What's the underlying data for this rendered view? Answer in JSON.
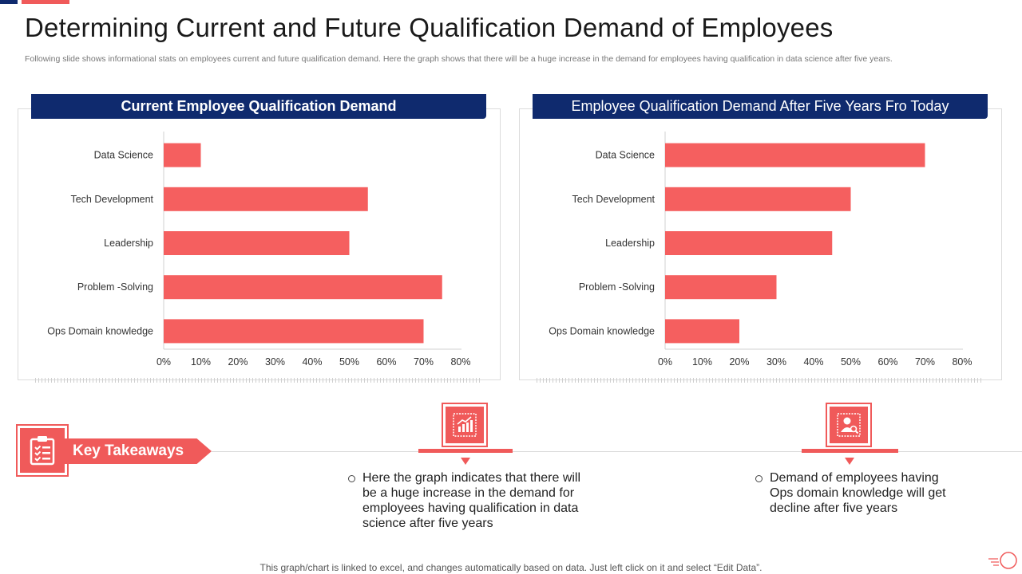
{
  "page": {
    "title": "Determining Current and Future Qualification Demand of Employees",
    "subtitle": "Following slide shows informational stats on employees current and future qualification demand. Here the graph shows that there will be a huge increase in the demand for employees having qualification in data science after five years.",
    "footer": "This graph/chart is linked to excel, and changes automatically based on data. Just left click on it and select “Edit Data”."
  },
  "panels": {
    "left_header": "Current Employee Qualification Demand",
    "right_header": "Employee Qualification Demand After Five Years Fro Today"
  },
  "takeaways": {
    "label": "Key Takeaways",
    "items": [
      {
        "text": "Here the graph indicates that there will be a huge increase in the demand for employees having qualification in data science after five years",
        "icon": "bar-chart-icon"
      },
      {
        "text": "Demand of employees having Ops domain knowledge will get decline after five years",
        "icon": "user-search-icon"
      }
    ]
  },
  "colors": {
    "accent": "#f05a5a",
    "brand": "#0f2a6e"
  },
  "chart_data": [
    {
      "type": "bar",
      "orientation": "horizontal",
      "title": "Current Employee Qualification Demand",
      "categories": [
        "Data Science",
        "Tech Development",
        "Leadership",
        "Problem -Solving",
        "Ops Domain knowledge"
      ],
      "values": [
        10,
        55,
        50,
        75,
        70
      ],
      "xlim": [
        0,
        80
      ],
      "xticks": [
        "0%",
        "10%",
        "20%",
        "30%",
        "40%",
        "50%",
        "60%",
        "70%",
        "80%"
      ],
      "color": "#f55f5f",
      "grid": false
    },
    {
      "type": "bar",
      "orientation": "horizontal",
      "title": "Employee Qualification Demand After Five Years Fro Today",
      "categories": [
        "Data Science",
        "Tech Development",
        "Leadership",
        "Problem -Solving",
        "Ops Domain knowledge"
      ],
      "values": [
        70,
        50,
        45,
        30,
        20
      ],
      "xlim": [
        0,
        80
      ],
      "xticks": [
        "0%",
        "10%",
        "20%",
        "30%",
        "40%",
        "50%",
        "60%",
        "70%",
        "80%"
      ],
      "color": "#f55f5f",
      "grid": false
    }
  ]
}
